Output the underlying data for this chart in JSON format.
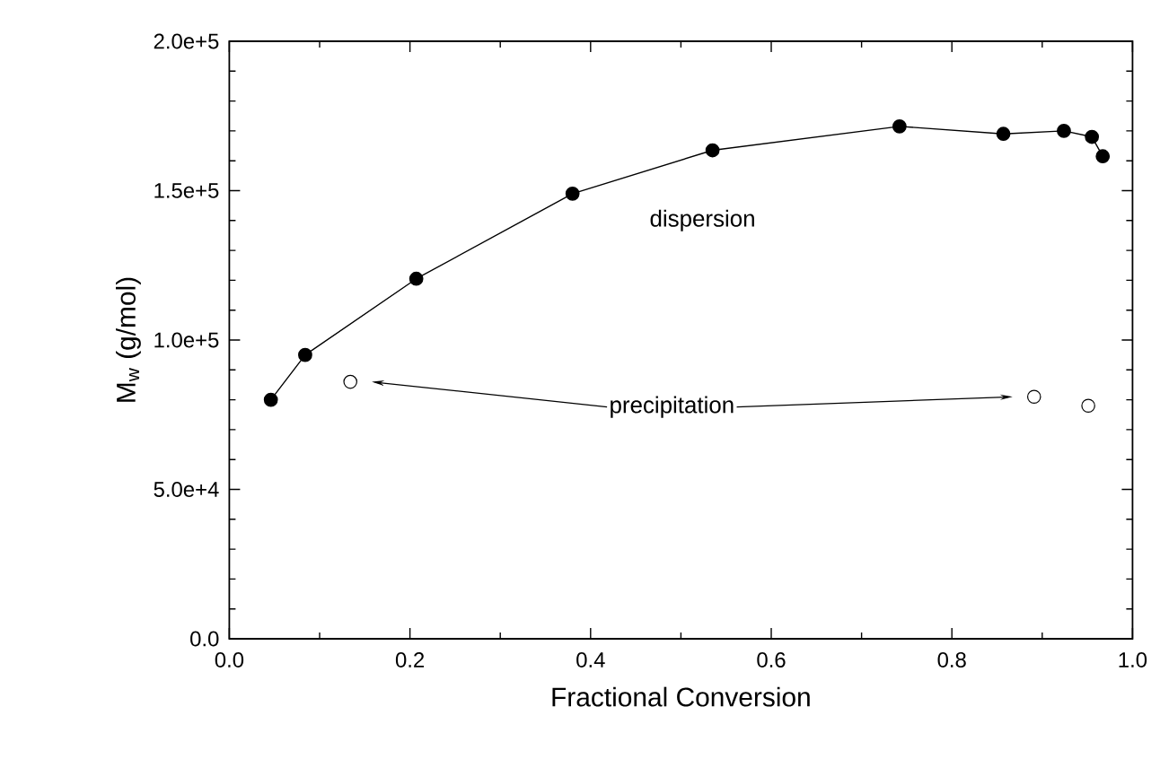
{
  "chart_data": {
    "type": "line",
    "xlabel": "Fractional Conversion",
    "ylabel": "M$_{w}$ (g/mol)",
    "xlim": [
      0,
      1
    ],
    "ylim": [
      0,
      200000
    ],
    "xticks": [
      {
        "value": 0,
        "label": "0.0"
      },
      {
        "value": 0.2,
        "label": "0.2"
      },
      {
        "value": 0.4,
        "label": "0.4"
      },
      {
        "value": 0.6,
        "label": "0.6"
      },
      {
        "value": 0.8,
        "label": "0.8"
      },
      {
        "value": 1,
        "label": "1.0"
      }
    ],
    "yticks": [
      {
        "value": 0,
        "label": "0.0"
      },
      {
        "value": 50000,
        "label": "5.0e+4"
      },
      {
        "value": 100000,
        "label": "1.0e+5"
      },
      {
        "value": 150000,
        "label": "1.5e+5"
      },
      {
        "value": 200000,
        "label": "2.0e+5"
      }
    ],
    "marker": "circle",
    "series": [
      {
        "color": "#000000",
        "x": [
          0.046,
          0.084,
          0.207,
          0.38,
          0.535,
          0.742,
          0.857,
          0.924,
          0.955,
          0.967
        ],
        "values": [
          80000,
          95000,
          120500,
          149000,
          163500,
          171500,
          169000,
          170000,
          168000,
          161500
        ]
      },
      {
        "type": "scatter",
        "color": "#000000",
        "x": [
          0.134,
          0.891,
          0.951
        ],
        "values": [
          86000,
          81000,
          78000
        ]
      }
    ],
    "annotations": [
      "dispersion",
      "precipitation"
    ]
  }
}
